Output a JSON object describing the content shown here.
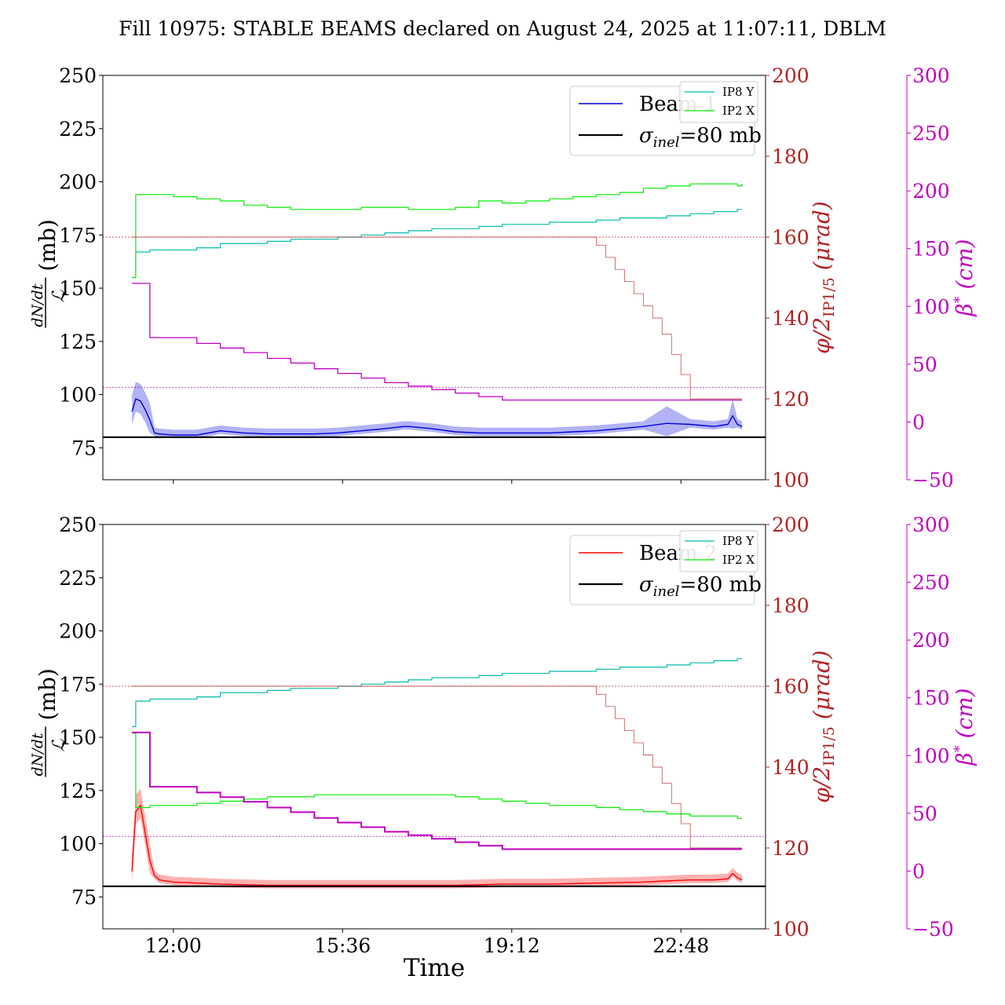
{
  "figure": {
    "title": "Fill 10975: STABLE BEAMS declared on August 24, 2025 at 11:07:11, DBLM",
    "xlabel": "Time",
    "x_tick_labels": [
      "12:00",
      "15:36",
      "19:12",
      "22:48"
    ],
    "colors": {
      "beam1": "#0000dd",
      "beam2": "#ff0000",
      "ip8": "#00bbaa",
      "ip2": "#00ee00",
      "phi": "#b22222",
      "beta": "#c000c0",
      "sigma": "#000000"
    }
  },
  "chart_data": [
    {
      "type": "line",
      "panel": "top",
      "legend_main": [
        "Beam 1",
        "σ_inel=80 mb"
      ],
      "legend_small": [
        "IP8 Y",
        "IP2 X"
      ],
      "legend_placement": "top-right",
      "left_axis": {
        "label": "dN/dt / L (mb)",
        "range": [
          60,
          250
        ],
        "ticks": [
          75,
          100,
          125,
          150,
          175,
          200,
          225,
          250
        ]
      },
      "phi_axis": {
        "label": "φ/2 IP1/5 (μrad)",
        "range": [
          100,
          200
        ],
        "ticks": [
          100,
          120,
          140,
          160,
          180,
          200
        ]
      },
      "beta_axis": {
        "label": "β* (cm)",
        "range": [
          -50,
          300
        ],
        "ticks": [
          -50,
          0,
          50,
          100,
          150,
          200,
          250,
          300
        ]
      },
      "x_ticks_hours": [
        12.0,
        15.6,
        19.2,
        22.8
      ],
      "x_range_hours": [
        10.5,
        24.6
      ],
      "sigma_inel": 80,
      "phi_reference": 160,
      "beta_reference": 30,
      "series": [
        {
          "name": "Beam 1",
          "axis": "left",
          "x": [
            11.12,
            11.2,
            11.3,
            11.4,
            11.5,
            11.6,
            11.7,
            12.0,
            12.5,
            13.0,
            13.5,
            14.0,
            14.5,
            15.0,
            15.5,
            16.0,
            16.5,
            16.9,
            17.0,
            17.5,
            18.0,
            18.5,
            19.0,
            19.5,
            20.0,
            20.5,
            21.0,
            21.5,
            22.0,
            22.5,
            23.0,
            23.5,
            23.8,
            23.9,
            24.0,
            24.1
          ],
          "y": [
            92,
            98,
            97,
            93,
            88,
            82,
            81.5,
            81,
            81,
            83,
            82,
            81.5,
            81.5,
            81.5,
            82,
            83,
            84,
            85,
            85,
            84,
            82.5,
            82,
            82,
            82,
            82,
            82.5,
            83,
            84,
            85,
            86.5,
            86,
            85,
            86,
            90,
            86,
            85
          ]
        },
        {
          "name": "IP8 Y",
          "axis": "left",
          "x": [
            11.12,
            11.2,
            11.5,
            12.0,
            12.5,
            13.0,
            13.5,
            14.0,
            14.5,
            15.0,
            15.5,
            16.0,
            16.5,
            17.0,
            17.5,
            18.0,
            18.5,
            19.0,
            19.5,
            20.0,
            20.5,
            21.0,
            21.5,
            22.0,
            22.5,
            23.0,
            23.5,
            24.0,
            24.1
          ],
          "y": [
            155,
            167,
            168,
            168,
            169,
            171,
            171,
            172,
            173,
            173,
            174,
            175,
            176,
            177,
            178,
            178,
            179,
            180,
            180,
            181,
            181,
            182,
            183,
            183,
            184,
            185,
            186,
            187,
            187
          ]
        },
        {
          "name": "IP2 X",
          "axis": "left",
          "x": [
            11.12,
            11.2,
            11.5,
            12.0,
            12.5,
            13.0,
            13.5,
            14.0,
            14.5,
            15.0,
            15.5,
            16.0,
            16.5,
            17.0,
            17.5,
            18.0,
            18.5,
            19.0,
            19.5,
            20.0,
            20.5,
            21.0,
            21.5,
            22.0,
            22.5,
            23.0,
            23.5,
            24.0,
            24.1
          ],
          "y": [
            155,
            194,
            194,
            193,
            192,
            191,
            189,
            188,
            187,
            187,
            187,
            188,
            188,
            187,
            187,
            188,
            191,
            190,
            191,
            192,
            193,
            194,
            195,
            197,
            198,
            199,
            199,
            198,
            199
          ]
        },
        {
          "name": "phi",
          "axis": "phi",
          "x": [
            11.12,
            20.8,
            21.0,
            21.2,
            21.4,
            21.6,
            21.8,
            22.0,
            22.2,
            22.4,
            22.6,
            22.8,
            23.0,
            24.1
          ],
          "y": [
            160,
            160,
            158,
            155,
            152,
            149,
            146,
            143,
            140,
            136,
            131,
            126,
            120,
            120
          ]
        },
        {
          "name": "beta",
          "axis": "beta",
          "x": [
            11.12,
            11.45,
            11.5,
            12.0,
            12.5,
            13.0,
            13.5,
            14.0,
            14.5,
            15.0,
            15.5,
            16.0,
            16.5,
            17.0,
            17.5,
            18.0,
            18.5,
            19.0,
            24.1
          ],
          "y": [
            120,
            120,
            73,
            73,
            68,
            64,
            60,
            55,
            51,
            46,
            42,
            38,
            34,
            31,
            28,
            25,
            22,
            19,
            19
          ]
        }
      ]
    },
    {
      "type": "line",
      "panel": "bottom",
      "legend_main": [
        "Beam 2",
        "σ_inel=80 mb"
      ],
      "legend_small": [
        "IP8 Y",
        "IP2 X"
      ],
      "legend_placement": "top-right",
      "left_axis": {
        "label": "dN/dt / L (mb)",
        "range": [
          60,
          250
        ],
        "ticks": [
          75,
          100,
          125,
          150,
          175,
          200,
          225,
          250
        ]
      },
      "phi_axis": {
        "label": "φ/2 IP1/5 (μrad)",
        "range": [
          100,
          200
        ],
        "ticks": [
          100,
          120,
          140,
          160,
          180,
          200
        ]
      },
      "beta_axis": {
        "label": "β* (cm)",
        "range": [
          -50,
          300
        ],
        "ticks": [
          -50,
          0,
          50,
          100,
          150,
          200,
          250,
          300
        ]
      },
      "x_ticks_hours": [
        12.0,
        15.6,
        19.2,
        22.8
      ],
      "x_range_hours": [
        10.5,
        24.6
      ],
      "sigma_inel": 80,
      "phi_reference": 160,
      "beta_reference": 30,
      "series": [
        {
          "name": "Beam 2",
          "axis": "left",
          "x": [
            11.12,
            11.2,
            11.3,
            11.4,
            11.5,
            11.6,
            11.7,
            12.0,
            12.5,
            13.0,
            14.0,
            15.0,
            16.0,
            17.0,
            18.0,
            19.0,
            20.0,
            21.0,
            22.0,
            22.5,
            23.0,
            23.5,
            23.8,
            23.9,
            24.0,
            24.1
          ],
          "y": [
            87,
            115,
            118,
            105,
            92,
            85,
            83,
            82,
            81.5,
            81,
            80.5,
            80.5,
            80.5,
            80.5,
            80.5,
            81,
            81,
            81.5,
            82,
            82.5,
            83,
            83,
            83.5,
            86,
            84,
            83
          ]
        },
        {
          "name": "IP8 Y",
          "axis": "left",
          "x": [
            11.12,
            11.2,
            11.5,
            12.0,
            12.5,
            13.0,
            13.5,
            14.0,
            14.5,
            15.0,
            15.5,
            16.0,
            16.5,
            17.0,
            17.5,
            18.0,
            18.5,
            19.0,
            19.5,
            20.0,
            20.5,
            21.0,
            21.5,
            22.0,
            22.5,
            23.0,
            23.5,
            24.0,
            24.1
          ],
          "y": [
            155,
            167,
            168,
            168,
            169,
            171,
            171,
            172,
            173,
            173,
            174,
            175,
            176,
            177,
            178,
            178,
            179,
            180,
            180,
            181,
            181,
            182,
            183,
            183,
            184,
            185,
            186,
            187,
            187
          ]
        },
        {
          "name": "IP2 X",
          "axis": "left",
          "x": [
            11.12,
            11.2,
            11.5,
            12.0,
            12.5,
            13.0,
            13.5,
            14.0,
            14.5,
            15.0,
            15.5,
            16.0,
            16.5,
            17.0,
            17.5,
            18.0,
            18.5,
            19.0,
            19.5,
            20.0,
            20.5,
            21.0,
            21.5,
            22.0,
            22.5,
            23.0,
            23.5,
            24.0,
            24.1
          ],
          "y": [
            152,
            117,
            118,
            118,
            119,
            120,
            121,
            122,
            122,
            123,
            123,
            123,
            123,
            123,
            123,
            122,
            121,
            120,
            119,
            118,
            118,
            117,
            116,
            115,
            114,
            113,
            113,
            112,
            112
          ]
        },
        {
          "name": "phi",
          "axis": "phi",
          "x": [
            11.12,
            20.8,
            21.0,
            21.2,
            21.4,
            21.6,
            21.8,
            22.0,
            22.2,
            22.4,
            22.6,
            22.8,
            23.0,
            24.1
          ],
          "y": [
            160,
            160,
            158,
            155,
            152,
            149,
            146,
            143,
            140,
            136,
            131,
            126,
            120,
            120
          ]
        },
        {
          "name": "beta",
          "axis": "beta",
          "x": [
            11.12,
            11.45,
            11.5,
            12.0,
            12.5,
            13.0,
            13.5,
            14.0,
            14.5,
            15.0,
            15.5,
            16.0,
            16.5,
            17.0,
            17.5,
            18.0,
            18.5,
            19.0,
            24.1
          ],
          "y": [
            120,
            120,
            73,
            73,
            68,
            64,
            60,
            55,
            51,
            46,
            42,
            38,
            34,
            31,
            28,
            25,
            22,
            19,
            19
          ]
        }
      ]
    }
  ]
}
